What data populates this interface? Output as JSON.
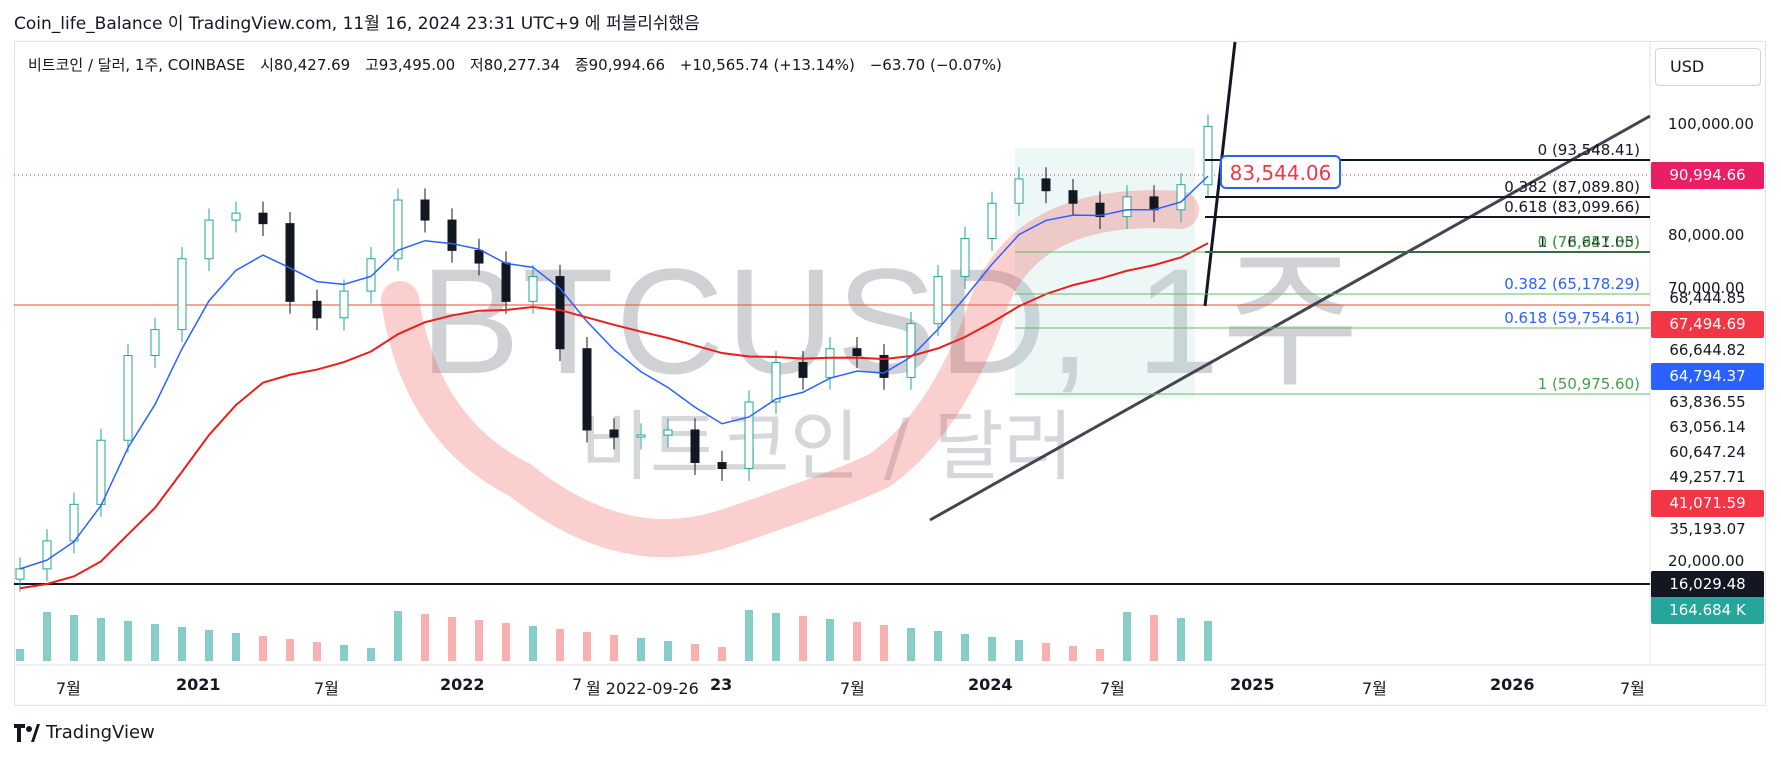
{
  "header": {
    "text": "Coin_life_Balance 이 TradingView.com, 11월 16, 2024 23:31 UTC+9 에 퍼블리쉬했음"
  },
  "legend": {
    "symbol": "비트코인 / 달러, 1주, COINBASE",
    "open": "시80,427.69",
    "high": "고93,495.00",
    "low": "저80,277.34",
    "close": "종90,994.66",
    "change": "+10,565.74 (+13.14%)",
    "change2": "−63.70 (−0.07%)"
  },
  "currency_button": "USD",
  "watermark": {
    "symbol": "BTCUSD, 1주",
    "name": "비트코인 / 달러"
  },
  "callout": "83,544.06",
  "brand": "TradingView",
  "colors": {
    "up": "#26a69a",
    "down": "#ef5350",
    "candle_down": "#131722",
    "ma_blue": "#2962ff",
    "ma_red": "#e91e1e",
    "price_tag": "#e91e63",
    "accent_blue": "#2962ff"
  },
  "chart_data": {
    "type": "candlestick",
    "title": "비트코인 / 달러, 1주, COINBASE",
    "y_scale": "log",
    "y_ticks": [
      "100,000.00",
      "80,000.00",
      "70,000.00",
      "20,000.00"
    ],
    "price_tags": [
      {
        "label": "90,994.66",
        "color": "#e91e63"
      },
      {
        "label": "68,444.85",
        "color": ""
      },
      {
        "label": "67,494.69",
        "color": "#f23645"
      },
      {
        "label": "66,644.82",
        "color": ""
      },
      {
        "label": "64,794.37",
        "color": "#2962ff"
      },
      {
        "label": "63,836.55",
        "color": ""
      },
      {
        "label": "63,056.14",
        "color": ""
      },
      {
        "label": "60,647.24",
        "color": ""
      },
      {
        "label": "49,257.71",
        "color": ""
      },
      {
        "label": "41,071.59",
        "color": "#f23645"
      },
      {
        "label": "35,193.07",
        "color": ""
      },
      {
        "label": "16,029.48",
        "color": "#131722"
      },
      {
        "label": "164.684 K",
        "color": "#26a69a"
      }
    ],
    "x_labels": [
      "7월",
      "2021",
      "7월",
      "2022",
      "7",
      "월 2022-09-26",
      "23",
      "7월",
      "2024",
      "7월",
      "2025",
      "7월",
      "2026",
      "7월"
    ],
    "fib_sets": [
      {
        "levels": [
          "0 (93,548.41)",
          "0.382 (87,089.80)",
          "0.618 (83,099.66)",
          "1 (76,641.05)"
        ],
        "color": "#131722"
      },
      {
        "levels": [
          "0 (73,957.30)",
          "0.382 (65,178.29)",
          "0.618 (59,754.61)",
          "1 (50,975.60)"
        ],
        "color": "#43a047"
      }
    ],
    "candles_close": [
      10000,
      11500,
      13800,
      19000,
      29000,
      33000,
      47000,
      57000,
      59000,
      56000,
      38000,
      35000,
      40000,
      47000,
      63000,
      57000,
      49000,
      46000,
      38000,
      43000,
      30000,
      20000,
      19300,
      19500,
      20000,
      17000,
      16500,
      23000,
      28000,
      26000,
      30000,
      29000,
      26000,
      34000,
      43000,
      52000,
      62000,
      70000,
      66000,
      62000,
      58000,
      64000,
      60000,
      68000,
      90994.66
    ],
    "notes": ""
  }
}
